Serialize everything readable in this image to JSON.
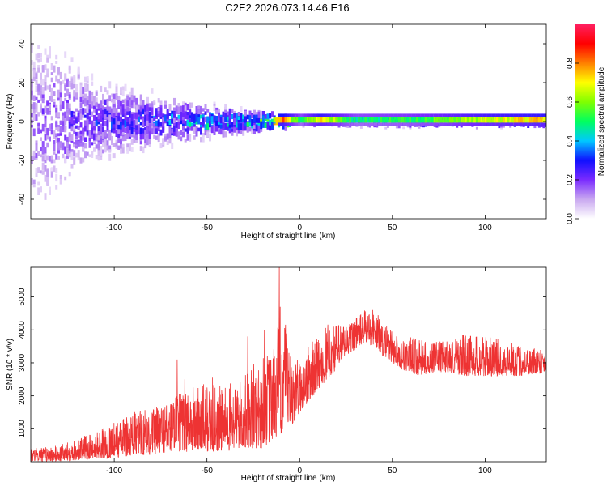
{
  "title": "C2E2.2026.073.14.46.E16",
  "chart_data": [
    {
      "type": "heatmap",
      "xlabel": "Height of straight line (km)",
      "ylabel": "Frequency (Hz)",
      "xlim": [
        -145,
        133
      ],
      "ylim": [
        -50,
        50
      ],
      "xticks": [
        -100,
        -50,
        0,
        50,
        100
      ],
      "yticks": [
        -40,
        -20,
        0,
        20,
        40
      ],
      "colorbar": {
        "label": "Normalized spectral amplitude",
        "range": [
          0,
          1
        ],
        "ticks": [
          0.0,
          0.2,
          0.4,
          0.6,
          0.8
        ],
        "colors": [
          "#ffffff",
          "#c9a8f0",
          "#7a2bff",
          "#1010ff",
          "#00c8ff",
          "#00ff60",
          "#80ff00",
          "#ffff00",
          "#ff8000",
          "#ff0000",
          "#ff2060"
        ]
      },
      "ridge": {
        "note": "signal band around 0 Hz",
        "points": [
          {
            "x": -145,
            "spread_hz": 50,
            "amplitude": 0.15
          },
          {
            "x": -110,
            "spread_hz": 20,
            "amplitude": 0.25
          },
          {
            "x": -75,
            "spread_hz": 12,
            "amplitude": 0.3
          },
          {
            "x": -50,
            "spread_hz": 8,
            "amplitude": 0.4
          },
          {
            "x": -25,
            "spread_hz": 5,
            "amplitude": 0.45
          },
          {
            "x": -10,
            "spread_hz": 3,
            "amplitude": 0.85
          },
          {
            "x": 0,
            "spread_hz": 2.5,
            "amplitude": 0.5
          },
          {
            "x": 10,
            "spread_hz": 2.5,
            "amplitude": 0.75
          },
          {
            "x": 30,
            "spread_hz": 3,
            "amplitude": 0.5
          },
          {
            "x": 60,
            "spread_hz": 3,
            "amplitude": 0.55
          },
          {
            "x": 100,
            "spread_hz": 3,
            "amplitude": 0.7
          },
          {
            "x": 133,
            "spread_hz": 3,
            "amplitude": 0.75
          }
        ]
      }
    },
    {
      "type": "line",
      "xlabel": "Height of straight line (km)",
      "ylabel": "SNR (10 * v/v)",
      "xlim": [
        -145,
        133
      ],
      "ylim": [
        0,
        5900
      ],
      "xticks": [
        -100,
        -50,
        0,
        50,
        100
      ],
      "yticks": [
        1000,
        2000,
        3000,
        4000,
        5000
      ],
      "color": "#ee3333",
      "series": [
        {
          "x": [
            -145,
            -130,
            -120,
            -110,
            -100,
            -90,
            -80,
            -70,
            -60,
            -50,
            -40,
            -30,
            -20,
            -15,
            -10,
            -5,
            0,
            5,
            10,
            15,
            20,
            25,
            30,
            35,
            40,
            45,
            50,
            55,
            60,
            65,
            70,
            80,
            90,
            100,
            110,
            120,
            133
          ],
          "envelope_low": [
            0,
            0,
            50,
            100,
            100,
            200,
            200,
            300,
            300,
            300,
            300,
            400,
            400,
            600,
            800,
            1000,
            1500,
            1800,
            2200,
            2500,
            2800,
            3200,
            3400,
            3600,
            3500,
            3200,
            3000,
            2800,
            2700,
            2600,
            2700,
            2700,
            2600,
            2600,
            2600,
            2600,
            2700
          ],
          "envelope_high": [
            400,
            500,
            700,
            900,
            1200,
            1500,
            1700,
            1900,
            2300,
            2400,
            2300,
            2600,
            3300,
            3300,
            5000,
            3300,
            3100,
            3600,
            3800,
            4200,
            4200,
            4200,
            4400,
            4600,
            4700,
            4200,
            4000,
            3700,
            3800,
            3700,
            3600,
            3700,
            3900,
            3800,
            3700,
            3500,
            3500
          ],
          "spikes": [
            {
              "x": -66,
              "y": 3100
            },
            {
              "x": -62,
              "y": 2500
            },
            {
              "x": -47,
              "y": 2550
            },
            {
              "x": -28,
              "y": 3800
            },
            {
              "x": -19,
              "y": 4000
            },
            {
              "x": -11,
              "y": 5900
            },
            {
              "x": -8,
              "y": 3800
            }
          ]
        }
      ]
    }
  ]
}
